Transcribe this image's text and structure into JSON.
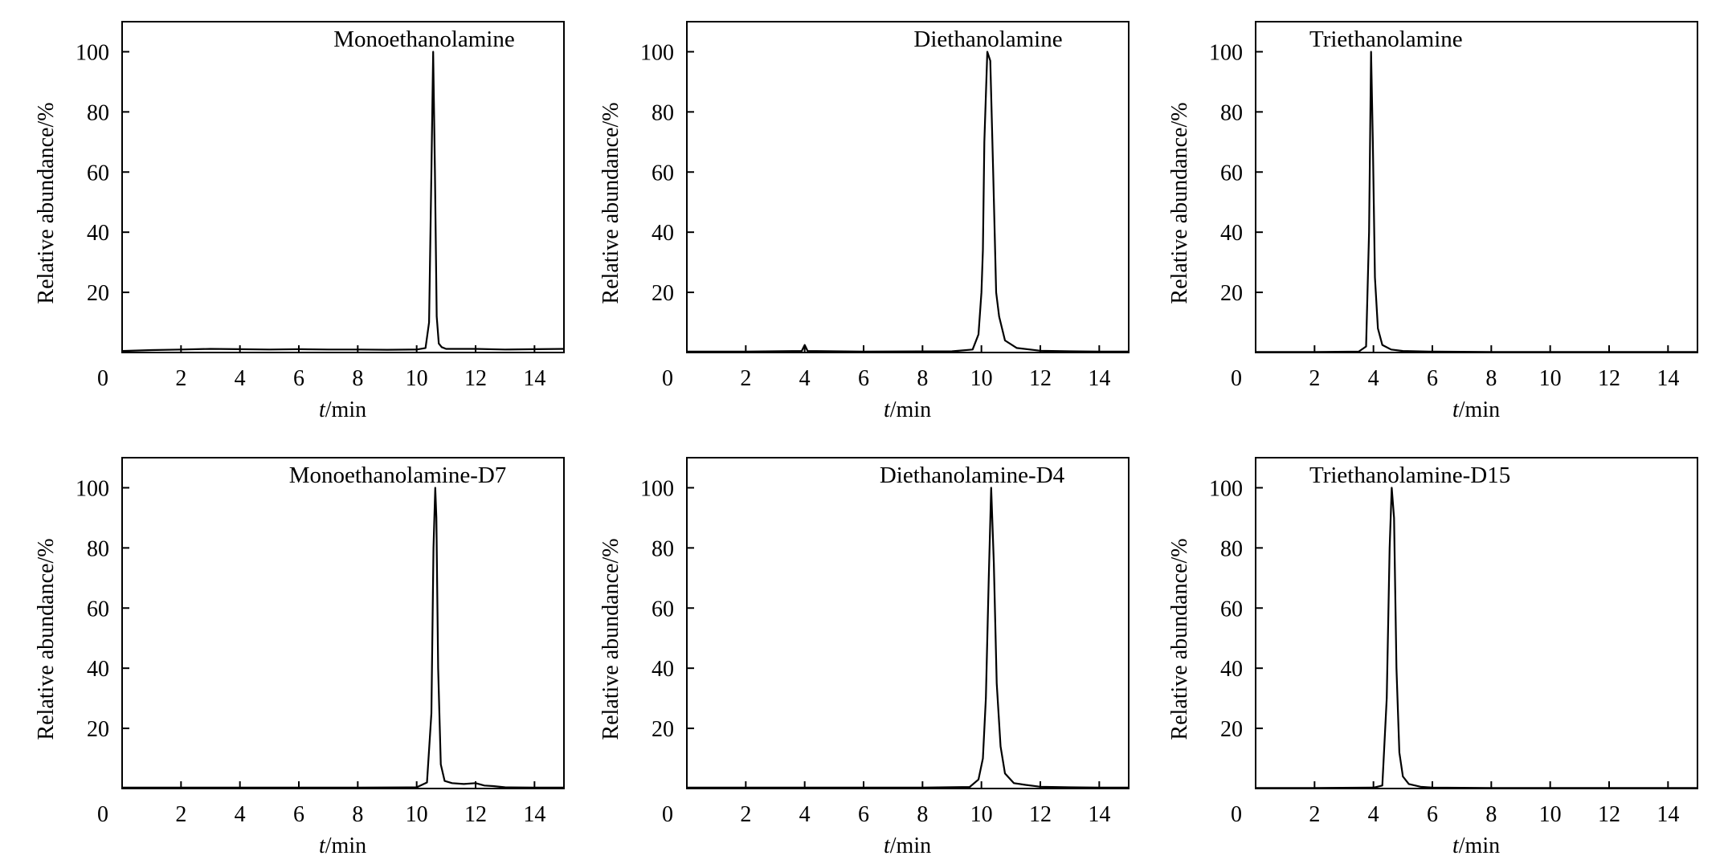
{
  "chart_data": [
    {
      "type": "line",
      "title": "Monoethanolamine",
      "xlabel_italic": "t",
      "xlabel_unit": "/min",
      "ylabel": "Relative abundance/%",
      "xlim": [
        0,
        15
      ],
      "ylim": [
        0,
        110
      ],
      "xticks": [
        0,
        2,
        4,
        6,
        8,
        10,
        12,
        14
      ],
      "yticks": [
        20,
        40,
        60,
        80,
        100
      ],
      "x": [
        0,
        1,
        2,
        3,
        4,
        5,
        6,
        7,
        8,
        9,
        10,
        10.3,
        10.42,
        10.5,
        10.56,
        10.62,
        10.68,
        10.75,
        10.85,
        11,
        12,
        13,
        14,
        15
      ],
      "y": [
        0.5,
        0.8,
        1.0,
        1.2,
        1.1,
        1.0,
        1.1,
        1.0,
        1.0,
        0.9,
        1.0,
        1.5,
        10,
        60,
        100,
        60,
        12,
        3,
        1.8,
        1.2,
        1.2,
        1.0,
        1.1,
        1.2
      ]
    },
    {
      "type": "line",
      "title": "Diethanolamine",
      "xlabel_italic": "t",
      "xlabel_unit": "/min",
      "ylabel": "Relative abundance/%",
      "xlim": [
        0,
        15
      ],
      "ylim": [
        0,
        110
      ],
      "xticks": [
        0,
        2,
        4,
        6,
        8,
        10,
        12,
        14
      ],
      "yticks": [
        20,
        40,
        60,
        80,
        100
      ],
      "x": [
        0,
        2,
        3.9,
        4.0,
        4.1,
        6,
        9,
        9.7,
        9.9,
        10.0,
        10.05,
        10.1,
        10.2,
        10.3,
        10.4,
        10.5,
        10.6,
        10.8,
        11.2,
        12,
        13,
        14,
        15
      ],
      "y": [
        0.3,
        0.3,
        0.5,
        2.5,
        0.5,
        0.3,
        0.4,
        1,
        6,
        20,
        34,
        70,
        100,
        97,
        60,
        20,
        12,
        4,
        1.5,
        0.6,
        0.4,
        0.3,
        0.3
      ]
    },
    {
      "type": "line",
      "title": "Triethanolamine",
      "xlabel_italic": "t",
      "xlabel_unit": "/min",
      "ylabel": "Relative abundance/%",
      "xlim": [
        0,
        15
      ],
      "ylim": [
        0,
        110
      ],
      "xticks": [
        0,
        2,
        4,
        6,
        8,
        10,
        12,
        14
      ],
      "yticks": [
        20,
        40,
        60,
        80,
        100
      ],
      "x": [
        0,
        2,
        3.5,
        3.75,
        3.85,
        3.92,
        3.98,
        4.05,
        4.15,
        4.3,
        4.6,
        5,
        6,
        8,
        10,
        12,
        14,
        15
      ],
      "y": [
        0.2,
        0.2,
        0.3,
        2,
        40,
        100,
        70,
        25,
        8,
        2.5,
        1,
        0.5,
        0.3,
        0.2,
        0.2,
        0.2,
        0.2,
        0.2
      ]
    },
    {
      "type": "line",
      "title": "Monoethanolamine-D7",
      "xlabel_italic": "t",
      "xlabel_unit": "/min",
      "ylabel": "Relative abundance/%",
      "xlim": [
        0,
        15
      ],
      "ylim": [
        0,
        110
      ],
      "xticks": [
        0,
        2,
        4,
        6,
        8,
        10,
        12,
        14
      ],
      "yticks": [
        20,
        40,
        60,
        80,
        100
      ],
      "x": [
        0,
        2,
        4,
        6,
        8,
        10,
        10.35,
        10.5,
        10.57,
        10.63,
        10.67,
        10.73,
        10.82,
        10.95,
        11.2,
        11.6,
        12,
        12.3,
        12.6,
        13,
        14,
        15
      ],
      "y": [
        0.3,
        0.3,
        0.3,
        0.3,
        0.3,
        0.4,
        2,
        25,
        80,
        100,
        90,
        40,
        8,
        2.5,
        1.8,
        1.5,
        1.8,
        1.0,
        0.8,
        0.4,
        0.3,
        0.3
      ]
    },
    {
      "type": "line",
      "title": "Diethanolamine-D4",
      "xlabel_italic": "t",
      "xlabel_unit": "/min",
      "ylabel": "Relative abundance/%",
      "xlim": [
        0,
        15
      ],
      "ylim": [
        0,
        110
      ],
      "xticks": [
        0,
        2,
        4,
        6,
        8,
        10,
        12,
        14
      ],
      "yticks": [
        20,
        40,
        60,
        80,
        100
      ],
      "x": [
        0,
        2,
        4,
        6,
        8,
        9.6,
        9.9,
        10.05,
        10.15,
        10.25,
        10.33,
        10.42,
        10.52,
        10.65,
        10.8,
        11.1,
        11.5,
        12,
        13,
        14,
        15
      ],
      "y": [
        0.3,
        0.3,
        0.3,
        0.3,
        0.3,
        0.5,
        3,
        10,
        30,
        70,
        100,
        75,
        35,
        14,
        5,
        1.8,
        1.2,
        0.6,
        0.4,
        0.3,
        0.3
      ]
    },
    {
      "type": "line",
      "title": "Triethanolamine-D15",
      "xlabel_italic": "t",
      "xlabel_unit": "/min",
      "ylabel": "Relative abundance/%",
      "xlim": [
        0,
        15
      ],
      "ylim": [
        0,
        110
      ],
      "xticks": [
        0,
        2,
        4,
        6,
        8,
        10,
        12,
        14
      ],
      "yticks": [
        20,
        40,
        60,
        80,
        100
      ],
      "x": [
        0,
        2,
        4,
        4.3,
        4.45,
        4.55,
        4.62,
        4.7,
        4.78,
        4.88,
        5.0,
        5.2,
        5.6,
        6,
        8,
        10,
        12,
        14,
        15
      ],
      "y": [
        0.2,
        0.2,
        0.3,
        1,
        30,
        80,
        100,
        90,
        40,
        12,
        4,
        1.5,
        0.6,
        0.3,
        0.2,
        0.2,
        0.2,
        0.2,
        0.2
      ]
    }
  ]
}
